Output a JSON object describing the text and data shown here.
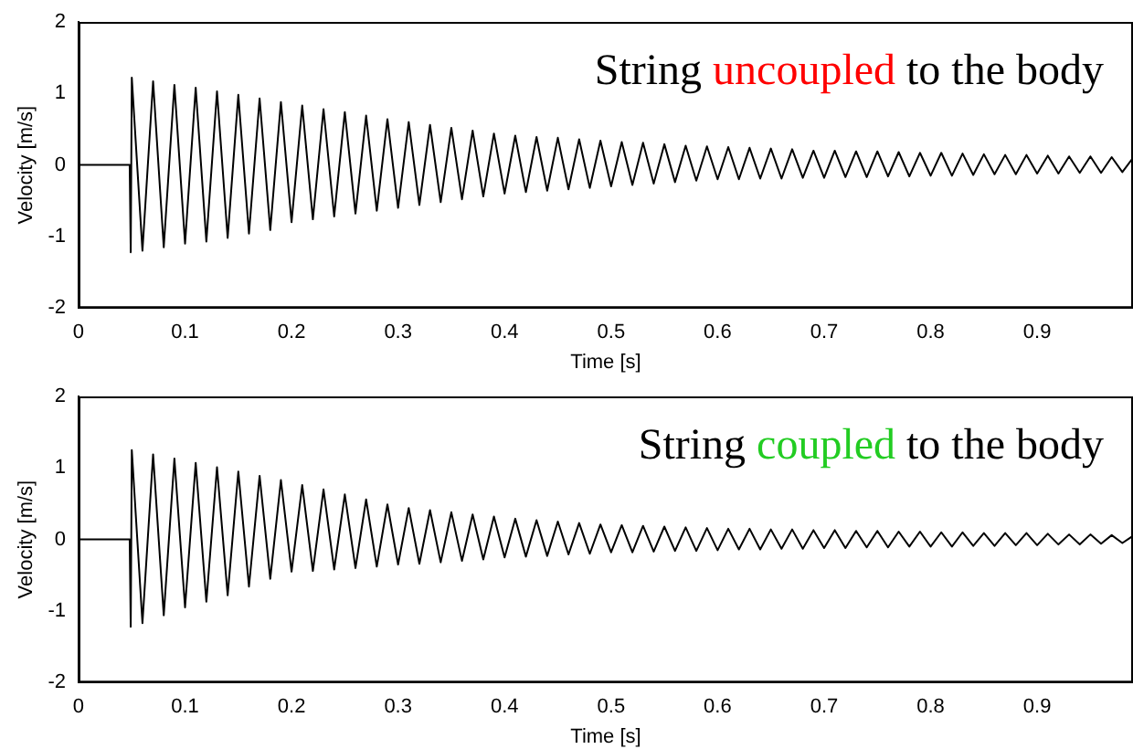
{
  "chart_data": [
    {
      "type": "line",
      "title": "String uncoupled to the body",
      "xlabel": "Time [s]",
      "ylabel": "Velocity [m/s]",
      "xlim": [
        0,
        0.99
      ],
      "xticks": [
        0,
        0.1,
        0.2,
        0.3,
        0.4,
        0.5,
        0.6,
        0.7,
        0.8,
        0.9
      ],
      "ylim": [
        -2,
        2
      ],
      "yticks": [
        -2,
        -1,
        0,
        1,
        2
      ],
      "x": [
        0,
        0.048,
        0.049,
        0.05,
        0.06,
        0.07,
        0.08,
        0.09,
        0.1,
        0.11,
        0.12,
        0.13,
        0.14,
        0.15,
        0.16,
        0.17,
        0.18,
        0.19,
        0.2,
        0.21,
        0.22,
        0.23,
        0.24,
        0.25,
        0.26,
        0.27,
        0.28,
        0.29,
        0.3,
        0.31,
        0.32,
        0.33,
        0.34,
        0.35,
        0.36,
        0.37,
        0.38,
        0.39,
        0.4,
        0.41,
        0.42,
        0.43,
        0.44,
        0.45,
        0.46,
        0.47,
        0.48,
        0.49,
        0.5,
        0.51,
        0.52,
        0.53,
        0.54,
        0.55,
        0.56,
        0.57,
        0.58,
        0.59,
        0.6,
        0.61,
        0.62,
        0.63,
        0.64,
        0.65,
        0.66,
        0.67,
        0.68,
        0.69,
        0.7,
        0.71,
        0.72,
        0.73,
        0.74,
        0.75,
        0.76,
        0.77,
        0.78,
        0.79,
        0.8,
        0.81,
        0.82,
        0.83,
        0.84,
        0.85,
        0.86,
        0.87,
        0.88,
        0.89,
        0.9,
        0.91,
        0.92,
        0.93,
        0.94,
        0.95,
        0.96,
        0.97,
        0.98,
        0.99
      ],
      "series": [
        {
          "color": "#000000",
          "values": [
            0,
            0,
            -1.22,
            1.22,
            -1.2,
            1.17,
            -1.15,
            1.12,
            -1.1,
            1.08,
            -1.07,
            1.03,
            -1.02,
            0.98,
            -0.96,
            0.93,
            -0.91,
            0.88,
            -0.8,
            0.83,
            -0.76,
            0.78,
            -0.72,
            0.74,
            -0.68,
            0.69,
            -0.64,
            0.64,
            -0.6,
            0.6,
            -0.56,
            0.56,
            -0.52,
            0.52,
            -0.48,
            0.48,
            -0.44,
            0.44,
            -0.4,
            0.41,
            -0.38,
            0.39,
            -0.36,
            0.38,
            -0.34,
            0.36,
            -0.32,
            0.34,
            -0.3,
            0.32,
            -0.28,
            0.31,
            -0.26,
            0.29,
            -0.24,
            0.27,
            -0.22,
            0.26,
            -0.2,
            0.25,
            -0.2,
            0.24,
            -0.19,
            0.23,
            -0.19,
            0.22,
            -0.18,
            0.2,
            -0.18,
            0.2,
            -0.17,
            0.19,
            -0.17,
            0.19,
            -0.16,
            0.18,
            -0.16,
            0.17,
            -0.15,
            0.17,
            -0.15,
            0.16,
            -0.14,
            0.15,
            -0.13,
            0.14,
            -0.13,
            0.14,
            -0.12,
            0.13,
            -0.12,
            0.12,
            -0.11,
            0.12,
            -0.11,
            0.11,
            -0.1,
            0.1
          ]
        }
      ]
    },
    {
      "type": "line",
      "title": "String coupled to the body",
      "xlabel": "Time [s]",
      "ylabel": "Velocity [m/s]",
      "xlim": [
        0,
        0.99
      ],
      "xticks": [
        0,
        0.1,
        0.2,
        0.3,
        0.4,
        0.5,
        0.6,
        0.7,
        0.8,
        0.9
      ],
      "ylim": [
        -2,
        2
      ],
      "yticks": [
        -2,
        -1,
        0,
        1,
        2
      ],
      "x": [
        0,
        0.048,
        0.049,
        0.05,
        0.06,
        0.07,
        0.08,
        0.09,
        0.1,
        0.11,
        0.12,
        0.13,
        0.14,
        0.15,
        0.16,
        0.17,
        0.18,
        0.19,
        0.2,
        0.21,
        0.22,
        0.23,
        0.24,
        0.25,
        0.26,
        0.27,
        0.28,
        0.29,
        0.3,
        0.31,
        0.32,
        0.33,
        0.34,
        0.35,
        0.36,
        0.37,
        0.38,
        0.39,
        0.4,
        0.41,
        0.42,
        0.43,
        0.44,
        0.45,
        0.46,
        0.47,
        0.48,
        0.49,
        0.5,
        0.51,
        0.52,
        0.53,
        0.54,
        0.55,
        0.56,
        0.57,
        0.58,
        0.59,
        0.6,
        0.61,
        0.62,
        0.63,
        0.64,
        0.65,
        0.66,
        0.67,
        0.68,
        0.69,
        0.7,
        0.71,
        0.72,
        0.73,
        0.74,
        0.75,
        0.76,
        0.77,
        0.78,
        0.79,
        0.8,
        0.81,
        0.82,
        0.83,
        0.84,
        0.85,
        0.86,
        0.87,
        0.88,
        0.89,
        0.9,
        0.91,
        0.92,
        0.93,
        0.94,
        0.95,
        0.96,
        0.97,
        0.98,
        0.99
      ],
      "series": [
        {
          "color": "#000000",
          "values": [
            0,
            0,
            -1.22,
            1.25,
            -1.17,
            1.19,
            -1.06,
            1.13,
            -0.95,
            1.07,
            -0.87,
            1.01,
            -0.78,
            0.95,
            -0.66,
            0.89,
            -0.55,
            0.83,
            -0.45,
            0.76,
            -0.44,
            0.7,
            -0.42,
            0.63,
            -0.4,
            0.56,
            -0.38,
            0.49,
            -0.35,
            0.44,
            -0.34,
            0.41,
            -0.32,
            0.38,
            -0.3,
            0.35,
            -0.28,
            0.32,
            -0.25,
            0.29,
            -0.24,
            0.27,
            -0.23,
            0.25,
            -0.21,
            0.23,
            -0.2,
            0.21,
            -0.18,
            0.2,
            -0.18,
            0.19,
            -0.17,
            0.18,
            -0.16,
            0.17,
            -0.16,
            0.16,
            -0.15,
            0.15,
            -0.14,
            0.15,
            -0.14,
            0.14,
            -0.13,
            0.14,
            -0.13,
            0.13,
            -0.12,
            0.13,
            -0.12,
            0.12,
            -0.11,
            0.12,
            -0.11,
            0.11,
            -0.1,
            0.11,
            -0.1,
            0.1,
            -0.1,
            0.1,
            -0.09,
            0.09,
            -0.09,
            0.09,
            -0.08,
            0.09,
            -0.08,
            0.08,
            -0.07,
            0.07,
            -0.07,
            0.07,
            -0.06,
            0.06,
            -0.05,
            0.05
          ]
        }
      ]
    }
  ]
}
